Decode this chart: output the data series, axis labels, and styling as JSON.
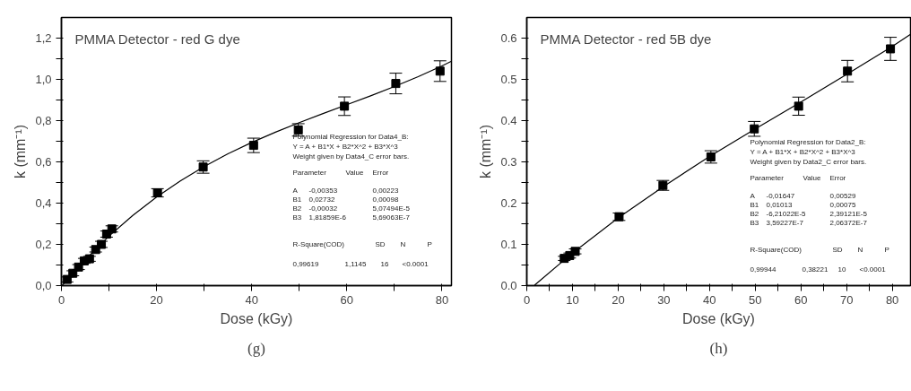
{
  "chart_data": [
    {
      "type": "scatter",
      "title": "PMMA Detector - red G dye",
      "xlabel": "Dose (kGy)",
      "ylabel": "k (mm⁻¹)",
      "xlim": [
        0,
        82
      ],
      "ylim": [
        0,
        1.3
      ],
      "xticks": [
        0,
        {
          "value": 10,
          "label": null
        },
        20,
        {
          "value": 30,
          "label": null
        },
        40,
        {
          "value": 50,
          "label": null
        },
        60,
        {
          "value": 70,
          "label": null
        },
        80
      ],
      "yticks": [
        {
          "value": 0,
          "label": "0,0"
        },
        {
          "value": 0.1,
          "label": null
        },
        {
          "value": 0.2,
          "label": "0,2"
        },
        {
          "value": 0.3,
          "label": null
        },
        {
          "value": 0.4,
          "label": "0,4"
        },
        {
          "value": 0.5,
          "label": null
        },
        {
          "value": 0.6,
          "label": "0,6"
        },
        {
          "value": 0.7,
          "label": null
        },
        {
          "value": 0.8,
          "label": "0,8"
        },
        {
          "value": 0.9,
          "label": null
        },
        {
          "value": 1.0,
          "label": "1,0"
        },
        {
          "value": 1.1,
          "label": null
        },
        {
          "value": 1.2,
          "label": "1,2"
        }
      ],
      "series": [
        {
          "marker": "square",
          "color": "#000000",
          "x": [
            1.2,
            2.4,
            3.6,
            4.8,
            5.9,
            7.2,
            8.4,
            9.5,
            10.6,
            20.2,
            29.8,
            40.4,
            49.8,
            59.5,
            70.3,
            79.6
          ],
          "values": [
            0.03,
            0.06,
            0.09,
            0.12,
            0.13,
            0.175,
            0.2,
            0.25,
            0.275,
            0.45,
            0.575,
            0.68,
            0.755,
            0.87,
            0.98,
            1.04
          ],
          "errors": [
            0.012,
            0.012,
            0.012,
            0.012,
            0.012,
            0.012,
            0.015,
            0.015,
            0.015,
            0.02,
            0.03,
            0.035,
            0.03,
            0.045,
            0.05,
            0.05
          ]
        },
        {
          "type": "line",
          "marker": "none",
          "color": "#000000",
          "x": [
            0.2,
            5,
            10,
            15,
            20,
            25,
            30,
            35,
            40,
            45,
            50,
            55,
            60,
            65,
            70,
            75,
            80,
            82
          ],
          "values": [
            0.002,
            0.125,
            0.24,
            0.34,
            0.429,
            0.508,
            0.577,
            0.639,
            0.694,
            0.744,
            0.79,
            0.834,
            0.877,
            0.92,
            0.965,
            1.013,
            1.065,
            1.088
          ]
        }
      ],
      "annotations": [
        "Polynomial Regression for Data4_B:",
        "Y = A + B1*X + B2*X^2 + B3*X^3",
        "Weight given by Data4_C error bars.",
        "Parameter",
        "Value",
        "Error",
        "A",
        "-0,00353",
        "0,00223",
        "B1",
        "0,02732",
        "0,00098",
        "B2",
        "-0,00032",
        "5,07494E-5",
        "B3",
        "1,81859E-6",
        "5,69063E-7",
        "R-Square(COD)",
        "SD",
        "N",
        "P",
        "0,99619",
        "1,1145",
        "16",
        "<0.0001",
        "(g)"
      ]
    },
    {
      "type": "scatter",
      "title": "PMMA Detector - red 5B dye",
      "xlabel": "Dose (kGy)",
      "ylabel": "k (mm⁻¹)",
      "xlim": [
        0,
        84
      ],
      "ylim": [
        0,
        0.65
      ],
      "xticks": [
        0,
        {
          "value": 5,
          "label": null
        },
        10,
        {
          "value": 15,
          "label": null
        },
        20,
        {
          "value": 25,
          "label": null
        },
        30,
        {
          "value": 35,
          "label": null
        },
        40,
        {
          "value": 45,
          "label": null
        },
        50,
        {
          "value": 55,
          "label": null
        },
        60,
        {
          "value": 65,
          "label": null
        },
        70,
        {
          "value": 75,
          "label": null
        },
        80
      ],
      "yticks": [
        {
          "value": 0,
          "label": "0.0"
        },
        {
          "value": 0.05,
          "label": null
        },
        0.1,
        {
          "value": 0.15,
          "label": null
        },
        0.2,
        {
          "value": 0.25,
          "label": null
        },
        0.3,
        {
          "value": 0.35,
          "label": null
        },
        0.4,
        {
          "value": 0.45,
          "label": null
        },
        0.5,
        {
          "value": 0.55,
          "label": null
        },
        0.6
      ],
      "series": [
        {
          "marker": "square",
          "color": "#000000",
          "x": [
            8.2,
            9.4,
            10.6,
            20.2,
            29.8,
            40.3,
            49.8,
            59.5,
            70.2,
            79.6
          ],
          "values": [
            0.066,
            0.073,
            0.083,
            0.167,
            0.243,
            0.312,
            0.38,
            0.435,
            0.52,
            0.574
          ],
          "errors": [
            0.005,
            0.006,
            0.006,
            0.009,
            0.012,
            0.015,
            0.018,
            0.022,
            0.026,
            0.028
          ]
        },
        {
          "type": "line",
          "marker": "none",
          "color": "#000000",
          "x": [
            1.7,
            10,
            20,
            30,
            40,
            50,
            60,
            70,
            80,
            84
          ],
          "values": [
            0.001,
            0.079,
            0.164,
            0.241,
            0.313,
            0.38,
            0.445,
            0.512,
            0.58,
            0.609
          ]
        }
      ],
      "annotations": [
        "Polynomial Regression for Data2_B:",
        "Y = A + B1*X + B2*X^2 + B3*X^3",
        "Weight given by Data2_C error bars.",
        "Parameter",
        "Value",
        "Error",
        "A",
        "-0,01647",
        "0,00529",
        "B1",
        "0,01013",
        "0,00075",
        "B2",
        "-6,21022E-5",
        "2,39121E-5",
        "B3",
        "3,59227E-7",
        "2,06372E-7",
        "R-Square(COD)",
        "SD",
        "N",
        "P",
        "0,99944",
        "0,38221",
        "10",
        "<0.0001",
        "(h)"
      ]
    }
  ]
}
